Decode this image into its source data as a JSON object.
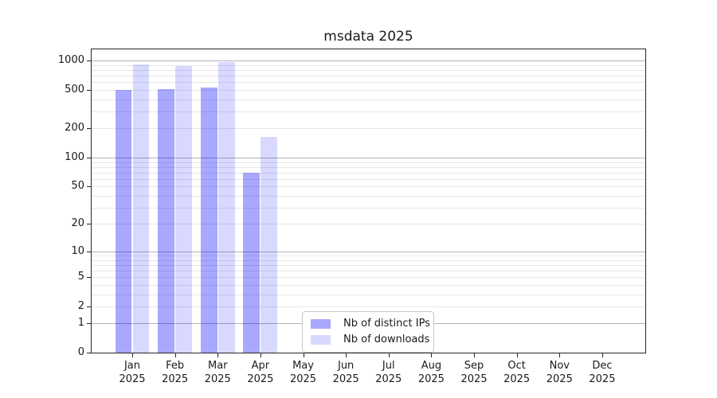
{
  "title": "msdata 2025",
  "chart_data": {
    "type": "bar",
    "title": "msdata 2025",
    "categories": [
      "Jan",
      "Feb",
      "Mar",
      "Apr",
      "May",
      "Jun",
      "Jul",
      "Aug",
      "Sep",
      "Oct",
      "Nov",
      "Dec"
    ],
    "category_year": "2025",
    "series": [
      {
        "name": "Nb of distinct IPs",
        "color": "#0000ff",
        "alpha": 0.34,
        "visible_color": "#a9a9fb",
        "values": [
          500,
          508,
          528,
          69,
          0,
          0,
          0,
          0,
          0,
          0,
          0,
          0
        ]
      },
      {
        "name": "Nb of downloads",
        "color": "#0000ff",
        "alpha": 0.15,
        "visible_color": "#d9d9fd",
        "values": [
          912,
          882,
          965,
          163,
          0,
          0,
          0,
          0,
          0,
          0,
          0,
          0
        ]
      }
    ],
    "xlabel": "",
    "ylabel": "",
    "y_axis": {
      "scale": "log10(1+v)",
      "tick_labels": [
        0,
        1,
        2,
        5,
        10,
        20,
        50,
        100,
        200,
        500,
        1000
      ],
      "major_gridlines": [
        1,
        10,
        100,
        1000
      ],
      "minor_gridlines": [
        2,
        3,
        4,
        5,
        6,
        7,
        8,
        9,
        20,
        30,
        40,
        50,
        60,
        70,
        80,
        90,
        200,
        300,
        400,
        500,
        600,
        700,
        800,
        900
      ],
      "ylim": [
        0,
        1320
      ]
    },
    "grid": "on",
    "legend": {
      "position": "lower center",
      "entries": [
        "Nb of distinct IPs",
        "Nb of downloads"
      ]
    },
    "colors": {
      "grid_major": "#b3b3b3",
      "grid_minor": "#e7e7e7",
      "spine": "#262626",
      "text": "#1a1a1a",
      "background": "#ffffff"
    }
  }
}
